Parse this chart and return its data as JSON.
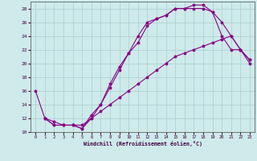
{
  "xlabel": "Windchill (Refroidissement éolien,°C)",
  "bg_color": "#ceeaea",
  "line_color": "#880088",
  "grid_color": "#aacece",
  "xlim": [
    -0.5,
    23.5
  ],
  "ylim": [
    10,
    29
  ],
  "yticks": [
    10,
    12,
    14,
    16,
    18,
    20,
    22,
    24,
    26,
    28
  ],
  "xticks": [
    0,
    1,
    2,
    3,
    4,
    5,
    6,
    7,
    8,
    9,
    10,
    11,
    12,
    13,
    14,
    15,
    16,
    17,
    18,
    19,
    20,
    21,
    22,
    23
  ],
  "series": [
    {
      "x": [
        0,
        1,
        2,
        3,
        4,
        5,
        6,
        7,
        8,
        9,
        10,
        11,
        12,
        13,
        14,
        15,
        16,
        17,
        18,
        19,
        20,
        21,
        22,
        23
      ],
      "y": [
        16,
        12,
        11,
        11,
        11,
        10.5,
        12.5,
        14,
        17,
        19.5,
        21.5,
        23,
        25.5,
        26.5,
        27,
        28,
        28,
        28,
        28,
        27.5,
        24,
        22,
        22,
        20.5
      ]
    },
    {
      "x": [
        1,
        2,
        3,
        4,
        5,
        6,
        7,
        8,
        9,
        10,
        11,
        12,
        13,
        14,
        15,
        16,
        17,
        18,
        19,
        20,
        21,
        22,
        23
      ],
      "y": [
        12,
        11,
        11,
        11,
        10.5,
        12,
        14,
        16.5,
        19,
        21.5,
        24,
        26,
        26.5,
        27,
        28,
        28,
        28.5,
        28.5,
        27.5,
        26,
        24,
        22,
        20
      ]
    },
    {
      "x": [
        1,
        2,
        3,
        4,
        5,
        6,
        7,
        8,
        9,
        10,
        11,
        12,
        13,
        14,
        15,
        16,
        17,
        18,
        19,
        20,
        21,
        22,
        23
      ],
      "y": [
        12,
        11.5,
        11,
        11,
        11,
        12,
        13,
        14,
        15,
        16,
        17,
        18,
        19,
        20,
        21,
        21.5,
        22,
        22.5,
        23,
        23.5,
        24,
        22,
        20.5
      ]
    }
  ]
}
